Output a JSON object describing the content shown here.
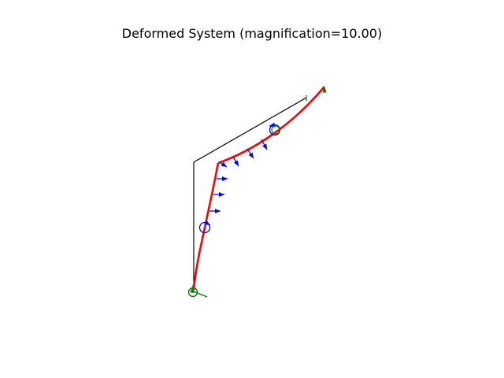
{
  "figure": {
    "title": "Deformed System (magnification=10.00)"
  },
  "colors": {
    "original_structure": "#000000",
    "deformed_structure": "#ff0000",
    "element_load": "#0000ff",
    "node_marker": "#008000",
    "background": "#ffffff"
  },
  "icons": {
    "distributed_load": "arrow-icon",
    "applied_moment": "moment-circle-icon",
    "support_reaction": "support-icon"
  }
}
